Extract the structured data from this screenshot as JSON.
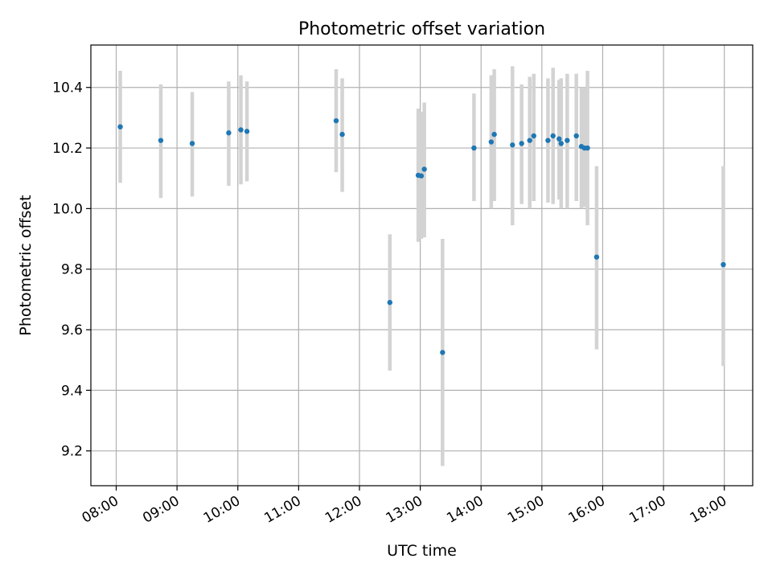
{
  "chart_data": {
    "type": "scatter",
    "title": "Photometric offset variation",
    "xlabel": "UTC time",
    "ylabel": "Photometric offset",
    "x_ticks": [
      "08:00",
      "09:00",
      "10:00",
      "11:00",
      "12:00",
      "13:00",
      "14:00",
      "15:00",
      "16:00",
      "17:00",
      "18:00"
    ],
    "y_ticks": [
      "9.2",
      "9.4",
      "9.6",
      "9.8",
      "10.0",
      "10.2",
      "10.4"
    ],
    "xlim": [
      "07:35",
      "18:28"
    ],
    "ylim": [
      9.085,
      10.54
    ],
    "grid": true,
    "point_color": "#1f77b4",
    "errorbar_color": "#d3d3d3",
    "series": [
      {
        "points": [
          {
            "x": "08:04",
            "y": 10.27,
            "ylow": 10.085,
            "yhigh": 10.455
          },
          {
            "x": "08:44",
            "y": 10.225,
            "ylow": 10.035,
            "yhigh": 10.41
          },
          {
            "x": "09:15",
            "y": 10.215,
            "ylow": 10.04,
            "yhigh": 10.385
          },
          {
            "x": "09:51",
            "y": 10.25,
            "ylow": 10.075,
            "yhigh": 10.42
          },
          {
            "x": "10:03",
            "y": 10.26,
            "ylow": 10.08,
            "yhigh": 10.44
          },
          {
            "x": "10:09",
            "y": 10.255,
            "ylow": 10.09,
            "yhigh": 10.42
          },
          {
            "x": "11:37",
            "y": 10.29,
            "ylow": 10.12,
            "yhigh": 10.46
          },
          {
            "x": "11:43",
            "y": 10.245,
            "ylow": 10.055,
            "yhigh": 10.43
          },
          {
            "x": "12:30",
            "y": 9.69,
            "ylow": 9.465,
            "yhigh": 9.915
          },
          {
            "x": "12:58",
            "y": 10.11,
            "ylow": 9.89,
            "yhigh": 10.33
          },
          {
            "x": "13:01",
            "y": 10.108,
            "ylow": 9.9,
            "yhigh": 10.32
          },
          {
            "x": "13:04",
            "y": 10.13,
            "ylow": 9.905,
            "yhigh": 10.35
          },
          {
            "x": "13:22",
            "y": 9.525,
            "ylow": 9.15,
            "yhigh": 9.9
          },
          {
            "x": "13:53",
            "y": 10.2,
            "ylow": 10.025,
            "yhigh": 10.38
          },
          {
            "x": "14:10",
            "y": 10.22,
            "ylow": 10.0,
            "yhigh": 10.44
          },
          {
            "x": "14:13",
            "y": 10.245,
            "ylow": 10.025,
            "yhigh": 10.46
          },
          {
            "x": "14:31",
            "y": 10.21,
            "ylow": 9.945,
            "yhigh": 10.47
          },
          {
            "x": "14:40",
            "y": 10.215,
            "ylow": 10.015,
            "yhigh": 10.41
          },
          {
            "x": "14:48",
            "y": 10.225,
            "ylow": 10.0,
            "yhigh": 10.435
          },
          {
            "x": "14:52",
            "y": 10.24,
            "ylow": 10.025,
            "yhigh": 10.445
          },
          {
            "x": "15:06",
            "y": 10.225,
            "ylow": 10.02,
            "yhigh": 10.43
          },
          {
            "x": "15:11",
            "y": 10.24,
            "ylow": 10.015,
            "yhigh": 10.465
          },
          {
            "x": "15:17",
            "y": 10.23,
            "ylow": 10.03,
            "yhigh": 10.425
          },
          {
            "x": "15:19",
            "y": 10.215,
            "ylow": 10.0,
            "yhigh": 10.43
          },
          {
            "x": "15:25",
            "y": 10.225,
            "ylow": 10.0,
            "yhigh": 10.445
          },
          {
            "x": "15:34",
            "y": 10.24,
            "ylow": 10.025,
            "yhigh": 10.445
          },
          {
            "x": "15:39",
            "y": 10.205,
            "ylow": 10.0,
            "yhigh": 10.4
          },
          {
            "x": "15:42",
            "y": 10.2,
            "ylow": 10.005,
            "yhigh": 10.4
          },
          {
            "x": "15:45",
            "y": 10.2,
            "ylow": 9.945,
            "yhigh": 10.455
          },
          {
            "x": "15:54",
            "y": 9.84,
            "ylow": 9.535,
            "yhigh": 10.14
          },
          {
            "x": "17:59",
            "y": 9.815,
            "ylow": 9.48,
            "yhigh": 10.14
          }
        ]
      }
    ]
  }
}
